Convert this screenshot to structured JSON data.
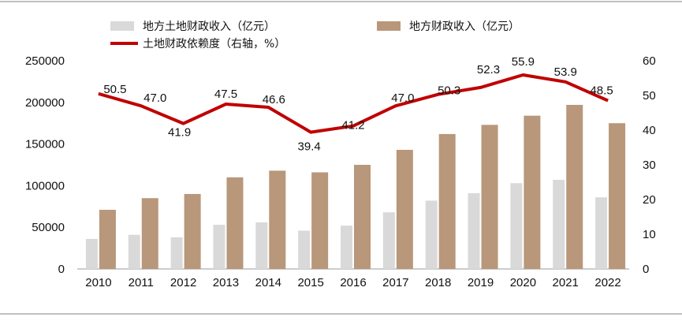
{
  "colors": {
    "land_revenue": "#d9d9d9",
    "fiscal_revenue": "#b8977a",
    "dependence": "#c00000",
    "axis": "#9a9a9a",
    "text": "#111111"
  },
  "legend": {
    "land_revenue": "地方土地财政收入（亿元）",
    "fiscal_revenue": "地方财政收入（亿元）",
    "dependence": "土地财政依赖度（右轴，%）"
  },
  "chart_data": {
    "type": "bar",
    "categories": [
      "2010",
      "2011",
      "2012",
      "2013",
      "2014",
      "2015",
      "2016",
      "2017",
      "2018",
      "2019",
      "2020",
      "2021",
      "2022"
    ],
    "series": [
      {
        "key": "land_revenue",
        "name": "地方土地财政收入（亿元）",
        "type": "bar",
        "axis": "left",
        "values": [
          36000,
          41000,
          38000,
          53000,
          56000,
          46000,
          52000,
          68000,
          82000,
          91000,
          103000,
          107000,
          86000
        ]
      },
      {
        "key": "fiscal_revenue",
        "name": "地方财政收入（亿元）",
        "type": "bar",
        "axis": "left",
        "values": [
          71000,
          85000,
          90000,
          110000,
          118000,
          116000,
          125000,
          143000,
          162000,
          173000,
          184000,
          197000,
          175000
        ]
      },
      {
        "key": "dependence",
        "name": "土地财政依赖度（右轴，%）",
        "type": "line",
        "axis": "right",
        "values": [
          50.5,
          47.0,
          41.9,
          47.5,
          46.6,
          39.4,
          41.2,
          47.0,
          50.3,
          52.3,
          55.9,
          53.9,
          48.5
        ],
        "labels": [
          "50.5",
          "47.0",
          "41.9",
          "47.5",
          "46.6",
          "39.4",
          "41.2",
          "47.0",
          "50.3",
          "52.3",
          "55.9",
          "53.9",
          "48.5"
        ]
      }
    ],
    "y_left": {
      "min": 0,
      "max": 250000,
      "ticks": [
        "0",
        "50000",
        "100000",
        "150000",
        "200000",
        "250000"
      ]
    },
    "y_right": {
      "min": 0,
      "max": 60,
      "ticks": [
        "0",
        "10",
        "20",
        "30",
        "40",
        "50",
        "60"
      ]
    },
    "grid": false,
    "legend_position": "top"
  }
}
